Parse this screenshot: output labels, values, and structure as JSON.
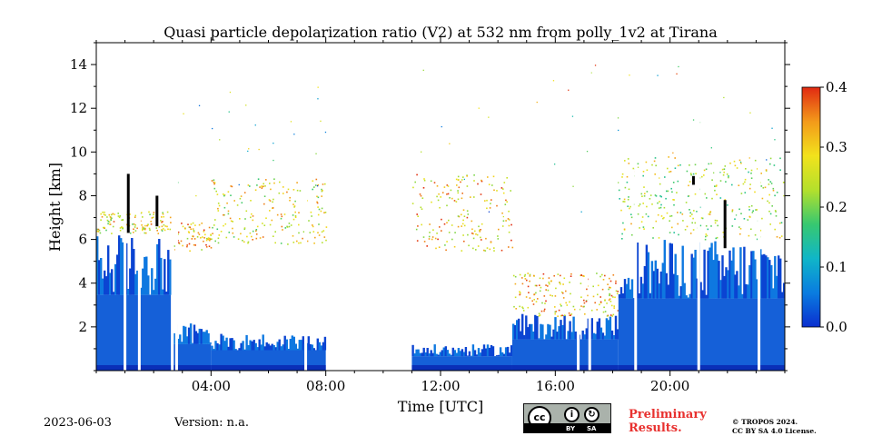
{
  "chart_data": {
    "type": "heatmap",
    "title": "Quasi particle depolarization ratio (V2) at 532 nm from polly_1v2 at Tirana",
    "xlabel": "Time [UTC]",
    "ylabel": "Height [km]",
    "x_unit": "hours UTC",
    "xlim": [
      0,
      24
    ],
    "ylim": [
      0,
      15
    ],
    "x_ticks": [
      {
        "value": 4,
        "label": "04:00"
      },
      {
        "value": 8,
        "label": "08:00"
      },
      {
        "value": 12,
        "label": "12:00"
      },
      {
        "value": 16,
        "label": "16:00"
      },
      {
        "value": 20,
        "label": "20:00"
      }
    ],
    "y_ticks": [
      {
        "value": 2,
        "label": "2"
      },
      {
        "value": 4,
        "label": "4"
      },
      {
        "value": 6,
        "label": "6"
      },
      {
        "value": 8,
        "label": "8"
      },
      {
        "value": 10,
        "label": "10"
      },
      {
        "value": 12,
        "label": "12"
      },
      {
        "value": 14,
        "label": "14"
      }
    ],
    "colorbar": {
      "range": [
        0.0,
        0.4
      ],
      "ticks": [
        {
          "value": 0.0,
          "label": "0.0"
        },
        {
          "value": 0.1,
          "label": "0.1"
        },
        {
          "value": 0.2,
          "label": "0.2"
        },
        {
          "value": 0.3,
          "label": "0.3"
        },
        {
          "value": 0.4,
          "label": "0.4"
        }
      ],
      "colormap": [
        "#0b2fcf",
        "#0a7ce0",
        "#10b6c8",
        "#37c870",
        "#b4e02c",
        "#f2e21c",
        "#f39a1a",
        "#e12a12"
      ]
    },
    "data_segments": [
      {
        "start": 0.0,
        "end": 2.6,
        "top_km": 6.3,
        "layer_bottom": 6.3,
        "layer_top": 7.3,
        "layer_value": 0.28
      },
      {
        "start": 2.7,
        "end": 4.0,
        "top_km": 2.2,
        "layer_bottom": 5.5,
        "layer_top": 6.8,
        "layer_value": 0.3
      },
      {
        "start": 4.0,
        "end": 8.0,
        "top_km": 1.7,
        "layer_bottom": 5.8,
        "layer_top": 8.8,
        "layer_value": 0.27
      },
      {
        "start": 11.0,
        "end": 14.5,
        "top_km": 1.2,
        "layer_bottom": 5.5,
        "layer_top": 9.0,
        "layer_value": 0.3
      },
      {
        "start": 14.5,
        "end": 18.2,
        "top_km": 2.6,
        "layer_bottom": 2.5,
        "layer_top": 4.5,
        "layer_value": 0.3
      },
      {
        "start": 18.2,
        "end": 24.0,
        "top_km": 6.0,
        "layer_bottom": 6.0,
        "layer_top": 9.8,
        "layer_value": 0.24
      }
    ],
    "data_gaps": [
      1.0,
      1.5,
      2.8,
      7.3,
      16.8,
      17.2,
      18.8,
      21.0,
      23.1
    ],
    "cloud_marks": [
      {
        "x": 1.1,
        "y_low": 6.3,
        "y_high": 9.0
      },
      {
        "x": 2.1,
        "y_low": 6.6,
        "y_high": 8.0
      },
      {
        "x": 20.8,
        "y_low": 8.5,
        "y_high": 8.9
      },
      {
        "x": 21.9,
        "y_low": 5.6,
        "y_high": 7.8
      }
    ],
    "grid": false,
    "legend": "none"
  },
  "footer": {
    "date": "2023-06-03",
    "version": "Version: n.a.",
    "license_badge": {
      "cc": "cc",
      "by": "BY",
      "sa": "SA",
      "by_icon": "person-icon",
      "sa_icon": "share-alike-icon"
    },
    "preliminary": "Preliminary\nResults.",
    "copyright": "© TROPOS 2024.\nCC BY SA 4.0 License."
  }
}
